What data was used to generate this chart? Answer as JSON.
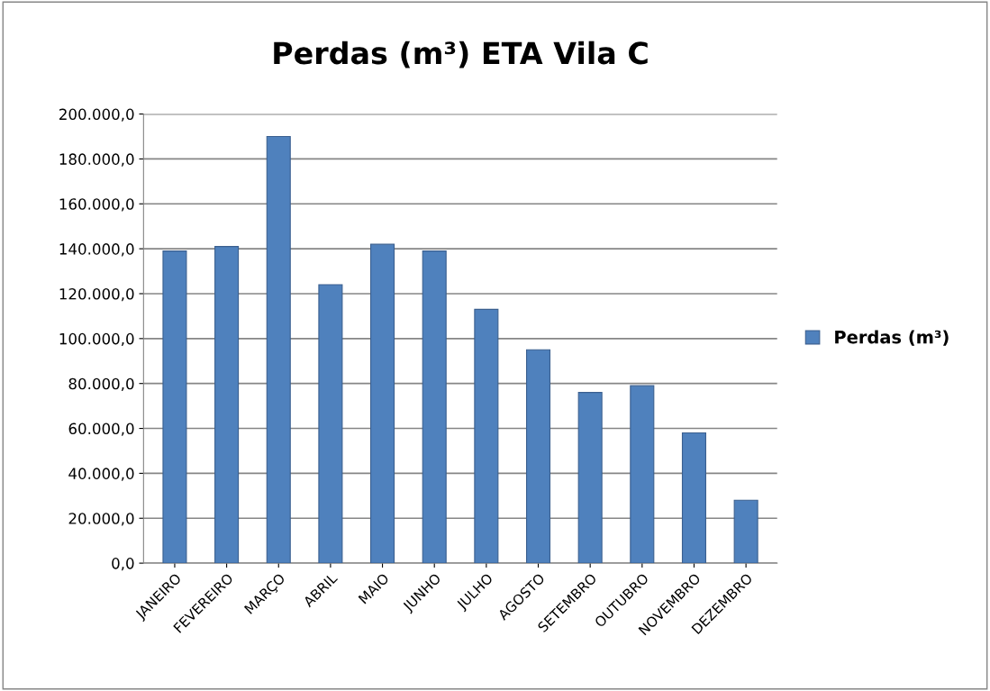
{
  "chart_data": {
    "type": "bar",
    "title": "Perdas (m³) ETA Vila C",
    "categories": [
      "JANEIRO",
      "FEVEREIRO",
      "MARÇO",
      "ABRIL",
      "MAIO",
      "JUNHO",
      "JULHO",
      "AGOSTO",
      "SETEMBRO",
      "OUTUBRO",
      "NOVEMBRO",
      "DEZEMBRO"
    ],
    "series": [
      {
        "name": "Perdas (m³)",
        "color": "#4f81bd",
        "values": [
          139000,
          141000,
          190000,
          124000,
          142000,
          139000,
          113000,
          95000,
          76000,
          79000,
          58000,
          28000
        ]
      }
    ],
    "ylim": [
      0,
      200000
    ],
    "yticks": [
      {
        "value": 0,
        "label": "0,0"
      },
      {
        "value": 20000,
        "label": "20.000,0"
      },
      {
        "value": 40000,
        "label": "40.000,0"
      },
      {
        "value": 60000,
        "label": "60.000,0"
      },
      {
        "value": 80000,
        "label": "80.000,0"
      },
      {
        "value": 100000,
        "label": "100.000,0"
      },
      {
        "value": 120000,
        "label": "120.000,0"
      },
      {
        "value": 140000,
        "label": "140.000,0"
      },
      {
        "value": 160000,
        "label": "160.000,0"
      },
      {
        "value": 180000,
        "label": "180.000,0"
      },
      {
        "value": 200000,
        "label": "200.000,0"
      }
    ],
    "grid": "y",
    "legend": "right"
  }
}
